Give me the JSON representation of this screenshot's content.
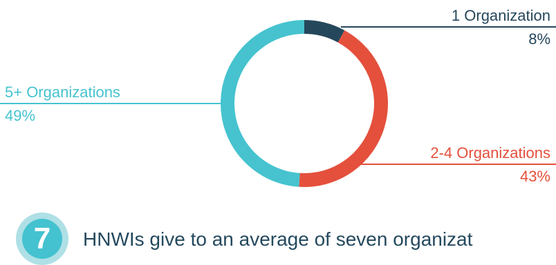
{
  "chart_data": {
    "type": "pie",
    "series": [
      {
        "name": "1 Organization",
        "value": 8,
        "label": "8%",
        "color": "#25475c"
      },
      {
        "name": "2-4 Organizations",
        "value": 43,
        "label": "43%",
        "color": "#e4503c"
      },
      {
        "name": "5+ Organizations",
        "value": 49,
        "label": "49%",
        "color": "#46c3cf"
      }
    ]
  },
  "footer": {
    "number": "7",
    "text": "HNWIs give to an average of seven organizat"
  }
}
